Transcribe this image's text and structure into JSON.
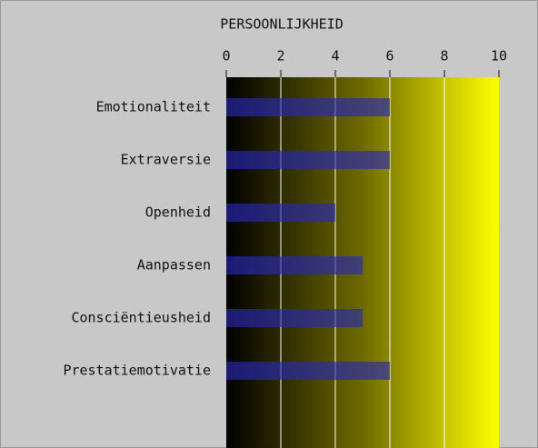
{
  "chart_data": {
    "type": "barh",
    "title": "PERSOONLIJKHEID",
    "categories": [
      "Emotionaliteit",
      "Extraversie",
      "Openheid",
      "Aanpassen",
      "Consciëntieusheid",
      "Prestatiemotivatie"
    ],
    "values": [
      6,
      6,
      4,
      5,
      5,
      6
    ],
    "color": "#2828b4",
    "xlim": [
      0,
      10
    ],
    "xticks": [
      0,
      2,
      4,
      6,
      8,
      10
    ],
    "grid": true
  }
}
